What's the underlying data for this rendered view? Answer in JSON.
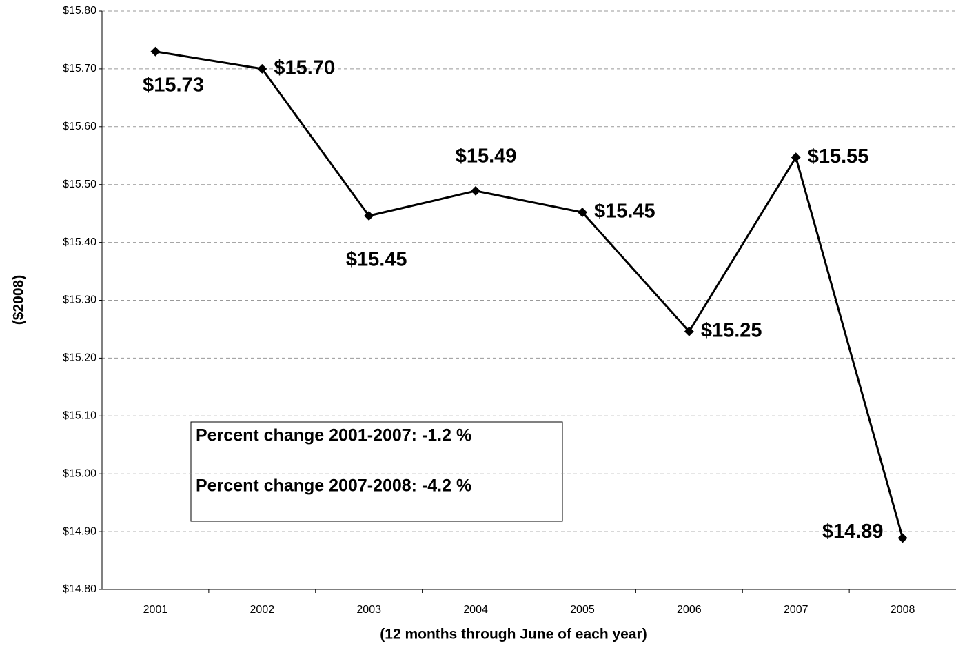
{
  "chart_data": {
    "type": "line",
    "x_label": "(12 months through June of each year)",
    "y_label": "($2008)",
    "categories": [
      "2001",
      "2002",
      "2003",
      "2004",
      "2005",
      "2006",
      "2007",
      "2008"
    ],
    "series": [
      {
        "name": "Value",
        "color": "#000000",
        "values": [
          15.73,
          15.7,
          15.446,
          15.489,
          15.452,
          15.246,
          15.547,
          14.889
        ],
        "value_labels": [
          "$15.73",
          "$15.70",
          "$15.45",
          "$15.49",
          "$15.45",
          "$15.25",
          "$15.55",
          "$14.89"
        ]
      }
    ],
    "ylim": [
      14.8,
      15.8
    ],
    "yticks": [
      {
        "value": 14.8,
        "label": "$14.80"
      },
      {
        "value": 14.9,
        "label": "$14.90"
      },
      {
        "value": 15.0,
        "label": "$15.00"
      },
      {
        "value": 15.1,
        "label": "$15.10"
      },
      {
        "value": 15.2,
        "label": "$15.20"
      },
      {
        "value": 15.3,
        "label": "$15.30"
      },
      {
        "value": 15.4,
        "label": "$15.40"
      },
      {
        "value": 15.5,
        "label": "$15.50"
      },
      {
        "value": 15.6,
        "label": "$15.60"
      },
      {
        "value": 15.7,
        "label": "$15.70"
      },
      {
        "value": 15.8,
        "label": "$15.80"
      }
    ],
    "grid": true,
    "annotations": [
      "Percent change 2001-2007: -1.2 %",
      "Percent change 2007-2008: -4.2 %"
    ]
  }
}
